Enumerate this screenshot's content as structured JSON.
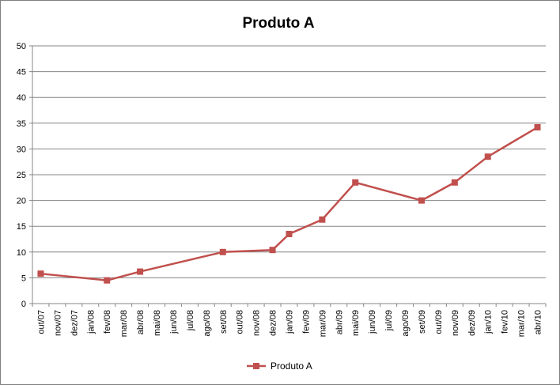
{
  "chart_data": {
    "type": "line",
    "title": "Produto A",
    "xlabel": "",
    "ylabel": "",
    "ylim": [
      0,
      50
    ],
    "yticks": [
      0,
      5,
      10,
      15,
      20,
      25,
      30,
      35,
      40,
      45,
      50
    ],
    "grid": true,
    "legend_position": "bottom",
    "categories": [
      "out/07",
      "nov/07",
      "dez/07",
      "jan/08",
      "fev/08",
      "mar/08",
      "abr/08",
      "mai/08",
      "jun/08",
      "jul/08",
      "ago/08",
      "set/08",
      "out/08",
      "nov/08",
      "dez/08",
      "jan/09",
      "fev/09",
      "mar/09",
      "abr/09",
      "mai/09",
      "jun/09",
      "jul/09",
      "ago/09",
      "set/09",
      "out/09",
      "nov/09",
      "dez/09",
      "jan/10",
      "fev/10",
      "mar/10",
      "abr/10"
    ],
    "series": [
      {
        "name": "Produto A",
        "color": "#c0504d",
        "marker": "square",
        "points": [
          {
            "x": "out/07",
            "y": 5.8
          },
          {
            "x": "fev/08",
            "y": 4.5
          },
          {
            "x": "abr/08",
            "y": 6.2
          },
          {
            "x": "set/08",
            "y": 10.0
          },
          {
            "x": "dez/08",
            "y": 10.4
          },
          {
            "x": "jan/09",
            "y": 13.5
          },
          {
            "x": "mar/09",
            "y": 16.3
          },
          {
            "x": "mai/09",
            "y": 23.5
          },
          {
            "x": "set/09",
            "y": 20.0
          },
          {
            "x": "nov/09",
            "y": 23.5
          },
          {
            "x": "jan/10",
            "y": 28.5
          },
          {
            "x": "abr/10",
            "y": 34.2
          }
        ]
      }
    ]
  }
}
